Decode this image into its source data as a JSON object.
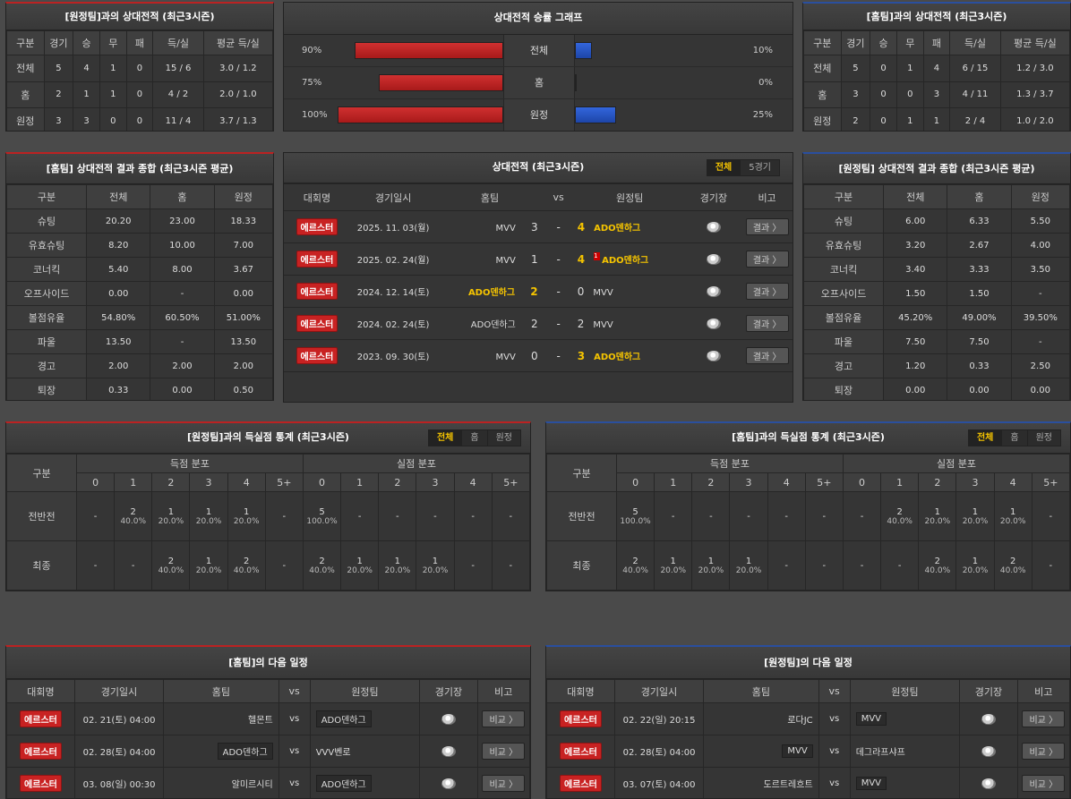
{
  "h2h_away": {
    "title": "[원정팀]과의 상대전적 (최근3시즌)",
    "headers": [
      "구분",
      "경기",
      "승",
      "무",
      "패",
      "득/실",
      "평균 득/실"
    ],
    "rows": [
      [
        "전체",
        "5",
        "4",
        "1",
        "0",
        "15 / 6",
        "3.0 / 1.2"
      ],
      [
        "홈",
        "2",
        "1",
        "1",
        "0",
        "4 / 2",
        "2.0 / 1.0"
      ],
      [
        "원정",
        "3",
        "3",
        "0",
        "0",
        "11 / 4",
        "3.7 / 1.3"
      ]
    ]
  },
  "h2h_home": {
    "title": "[홈팀]과의 상대전적 (최근3시즌)",
    "headers": [
      "구분",
      "경기",
      "승",
      "무",
      "패",
      "득/실",
      "평균 득/실"
    ],
    "rows": [
      [
        "전체",
        "5",
        "0",
        "1",
        "4",
        "6 / 15",
        "1.2 / 3.0"
      ],
      [
        "홈",
        "3",
        "0",
        "0",
        "3",
        "4 / 11",
        "1.3 / 3.7"
      ],
      [
        "원정",
        "2",
        "0",
        "1",
        "1",
        "2 / 4",
        "1.0 / 2.0"
      ]
    ]
  },
  "graph": {
    "title": "상대전적 승률 그래프",
    "rows": [
      {
        "label": "전체",
        "left": "90%",
        "right": "10%",
        "left_value": 90,
        "right_value": 10
      },
      {
        "label": "홈",
        "left": "75%",
        "right": "0%",
        "left_value": 75,
        "right_value": 0
      },
      {
        "label": "원정",
        "left": "100%",
        "right": "25%",
        "left_value": 100,
        "right_value": 25
      }
    ],
    "colors": {
      "home": "#c82222",
      "away": "#2a55c8"
    }
  },
  "home_summary": {
    "title": "[홈팀] 상대전적 결과 종합 (최근3시즌 평균)",
    "headers": [
      "구분",
      "전체",
      "홈",
      "원정"
    ],
    "rows": [
      [
        "슈팅",
        "20.20",
        "23.00",
        "18.33"
      ],
      [
        "유효슈팅",
        "8.20",
        "10.00",
        "7.00"
      ],
      [
        "코너킥",
        "5.40",
        "8.00",
        "3.67"
      ],
      [
        "오프사이드",
        "0.00",
        "-",
        "0.00"
      ],
      [
        "볼점유율",
        "54.80%",
        "60.50%",
        "51.00%"
      ],
      [
        "파울",
        "13.50",
        "-",
        "13.50"
      ],
      [
        "경고",
        "2.00",
        "2.00",
        "2.00"
      ],
      [
        "퇴장",
        "0.33",
        "0.00",
        "0.50"
      ]
    ]
  },
  "away_summary": {
    "title": "[원정팀] 상대전적 결과 종합 (최근3시즌 평균)",
    "headers": [
      "구분",
      "전체",
      "홈",
      "원정"
    ],
    "rows": [
      [
        "슈팅",
        "6.00",
        "6.33",
        "5.50"
      ],
      [
        "유효슈팅",
        "3.20",
        "2.67",
        "4.00"
      ],
      [
        "코너킥",
        "3.40",
        "3.33",
        "3.50"
      ],
      [
        "오프사이드",
        "1.50",
        "1.50",
        "-"
      ],
      [
        "볼점유율",
        "45.20%",
        "49.00%",
        "39.50%"
      ],
      [
        "파울",
        "7.50",
        "7.50",
        "-"
      ],
      [
        "경고",
        "1.20",
        "0.33",
        "2.50"
      ],
      [
        "퇴장",
        "0.00",
        "0.00",
        "0.00"
      ]
    ]
  },
  "recent": {
    "title": "상대전적 (최근3시즌)",
    "tabs": [
      "전체",
      "5경기"
    ],
    "headers": [
      "대회명",
      "경기일시",
      "홈팀",
      "vs",
      "원정팀",
      "경기장",
      "비고"
    ],
    "rows": [
      {
        "league": "에르스터",
        "date": "2025. 11. 03(월)",
        "home": "MVV",
        "hs": "3",
        "as": "4",
        "away": "ADO덴하그",
        "win": "away",
        "card": "",
        "btn": "결과 〉"
      },
      {
        "league": "에르스터",
        "date": "2025. 02. 24(월)",
        "home": "MVV",
        "hs": "1",
        "as": "4",
        "away": "ADO덴하그",
        "win": "away",
        "card": "1",
        "btn": "결과 〉"
      },
      {
        "league": "에르스터",
        "date": "2024. 12. 14(토)",
        "home": "ADO덴하그",
        "hs": "2",
        "as": "0",
        "away": "MVV",
        "win": "home",
        "card": "",
        "btn": "결과 〉"
      },
      {
        "league": "에르스터",
        "date": "2024. 02. 24(토)",
        "home": "ADO덴하그",
        "hs": "2",
        "as": "2",
        "away": "MVV",
        "win": "draw",
        "card": "",
        "btn": "결과 〉"
      },
      {
        "league": "에르스터",
        "date": "2023. 09. 30(토)",
        "home": "MVV",
        "hs": "0",
        "as": "3",
        "away": "ADO덴하그",
        "win": "away",
        "card": "",
        "btn": "결과 〉"
      }
    ]
  },
  "goals_left": {
    "title": "[원정팀]과의 득실점 통계 (최근3시즌)",
    "tabs": [
      "전체",
      "홈",
      "원정"
    ],
    "col_label": "구분",
    "score_dist": "득점 분포",
    "concede_dist": "실점 분포",
    "buckets": [
      "0",
      "1",
      "2",
      "3",
      "4",
      "5+"
    ],
    "rows": [
      {
        "label": "전반전",
        "cells": [
          [
            "-",
            ""
          ],
          [
            "2",
            "40.0%"
          ],
          [
            "1",
            "20.0%"
          ],
          [
            "1",
            "20.0%"
          ],
          [
            "1",
            "20.0%"
          ],
          [
            "-",
            ""
          ],
          [
            "5",
            "100.0%"
          ],
          [
            "-",
            ""
          ],
          [
            "-",
            ""
          ],
          [
            "-",
            ""
          ],
          [
            "-",
            ""
          ],
          [
            "-",
            ""
          ]
        ]
      },
      {
        "label": "최종",
        "cells": [
          [
            "-",
            ""
          ],
          [
            "-",
            ""
          ],
          [
            "2",
            "40.0%"
          ],
          [
            "1",
            "20.0%"
          ],
          [
            "2",
            "40.0%"
          ],
          [
            "-",
            ""
          ],
          [
            "2",
            "40.0%"
          ],
          [
            "1",
            "20.0%"
          ],
          [
            "1",
            "20.0%"
          ],
          [
            "1",
            "20.0%"
          ],
          [
            "-",
            ""
          ],
          [
            "-",
            ""
          ]
        ]
      }
    ]
  },
  "goals_right": {
    "title": "[홈팀]과의 득실점 통계 (최근3시즌)",
    "tabs": [
      "전체",
      "홈",
      "원정"
    ],
    "col_label": "구분",
    "score_dist": "득점 분포",
    "concede_dist": "실점 분포",
    "buckets": [
      "0",
      "1",
      "2",
      "3",
      "4",
      "5+"
    ],
    "rows": [
      {
        "label": "전반전",
        "cells": [
          [
            "5",
            "100.0%"
          ],
          [
            "-",
            ""
          ],
          [
            "-",
            ""
          ],
          [
            "-",
            ""
          ],
          [
            "-",
            ""
          ],
          [
            "-",
            ""
          ],
          [
            "-",
            ""
          ],
          [
            "2",
            "40.0%"
          ],
          [
            "1",
            "20.0%"
          ],
          [
            "1",
            "20.0%"
          ],
          [
            "1",
            "20.0%"
          ],
          [
            "-",
            ""
          ]
        ]
      },
      {
        "label": "최종",
        "cells": [
          [
            "2",
            "40.0%"
          ],
          [
            "1",
            "20.0%"
          ],
          [
            "1",
            "20.0%"
          ],
          [
            "1",
            "20.0%"
          ],
          [
            "-",
            ""
          ],
          [
            "-",
            ""
          ],
          [
            "-",
            ""
          ],
          [
            "-",
            ""
          ],
          [
            "2",
            "40.0%"
          ],
          [
            "1",
            "20.0%"
          ],
          [
            "2",
            "40.0%"
          ],
          [
            "-",
            ""
          ]
        ]
      }
    ]
  },
  "next_home": {
    "title": "[홈팀]의 다음 일정",
    "headers": [
      "대회명",
      "경기일시",
      "홈팀",
      "vs",
      "원정팀",
      "경기장",
      "비고"
    ],
    "rows": [
      {
        "league": "에르스터",
        "date": "02. 21(토) 04:00",
        "home": "헬몬트",
        "away": "ADO덴하그",
        "hl": "away",
        "btn": "비교 〉"
      },
      {
        "league": "에르스터",
        "date": "02. 28(토) 04:00",
        "home": "ADO덴하그",
        "away": "VVV벤로",
        "hl": "home",
        "btn": "비교 〉"
      },
      {
        "league": "에르스터",
        "date": "03. 08(일) 00:30",
        "home": "알미르시티",
        "away": "ADO덴하그",
        "hl": "away",
        "btn": "비교 〉"
      }
    ]
  },
  "next_away": {
    "title": "[원정팀]의 다음 일정",
    "headers": [
      "대회명",
      "경기일시",
      "홈팀",
      "vs",
      "원정팀",
      "경기장",
      "비고"
    ],
    "rows": [
      {
        "league": "에르스터",
        "date": "02. 22(일) 20:15",
        "home": "로다JC",
        "away": "MVV",
        "hl": "away",
        "btn": "비교 〉"
      },
      {
        "league": "에르스터",
        "date": "02. 28(토) 04:00",
        "home": "MVV",
        "away": "데그라프샤프",
        "hl": "home",
        "btn": "비교 〉"
      },
      {
        "league": "에르스터",
        "date": "03. 07(토) 04:00",
        "home": "도르트레흐트",
        "away": "MVV",
        "hl": "away",
        "btn": "비교 〉"
      }
    ]
  }
}
